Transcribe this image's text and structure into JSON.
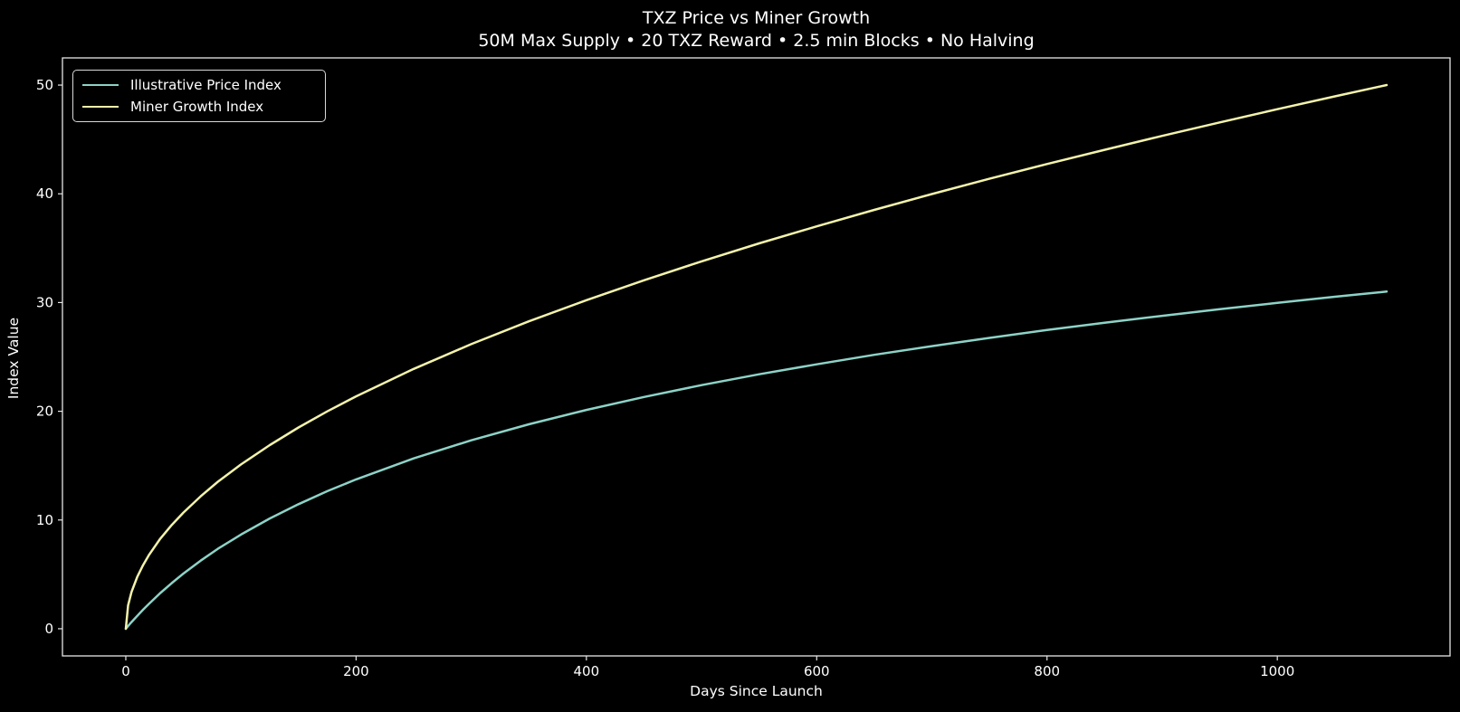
{
  "figure": {
    "background": "#000000",
    "text_color": "#ffffff",
    "spine_color": "#e6e6e6"
  },
  "title": {
    "line1": "TXZ Price vs Miner Growth",
    "line2": "50M Max Supply • 20 TXZ Reward • 2.5 min Blocks • No Halving"
  },
  "legend": {
    "position": "upper-left",
    "entries": [
      {
        "label": "Illustrative Price Index",
        "color": "#8dd3c7"
      },
      {
        "label": "Miner Growth Index",
        "color": "#f3f3ab"
      }
    ]
  },
  "chart_data": {
    "type": "line",
    "title": "TXZ Price vs Miner Growth",
    "subtitle": "50M Max Supply • 20 TXZ Reward • 2.5 min Blocks • No Halving",
    "xlabel": "Days Since Launch",
    "ylabel": "Index Value",
    "xticks": [
      0,
      200,
      400,
      600,
      800,
      1000
    ],
    "yticks": [
      0,
      10,
      20,
      30,
      40,
      50
    ],
    "xlim": [
      -55,
      1150
    ],
    "ylim": [
      -2.5,
      52.5
    ],
    "grid": false,
    "legend_position": "upper left",
    "x": [
      0,
      2,
      5,
      10,
      15,
      20,
      30,
      40,
      50,
      65,
      80,
      100,
      125,
      150,
      175,
      200,
      250,
      300,
      350,
      400,
      450,
      500,
      550,
      600,
      650,
      700,
      750,
      800,
      850,
      900,
      950,
      1000,
      1050,
      1095
    ],
    "series": [
      {
        "name": "Illustrative Price Index",
        "color": "#8dd3c7",
        "values": [
          0,
          0.25,
          0.61,
          1.19,
          1.75,
          2.28,
          3.28,
          4.21,
          5.07,
          6.26,
          7.35,
          8.66,
          10.14,
          11.45,
          12.65,
          13.73,
          15.66,
          17.33,
          18.8,
          20.12,
          21.31,
          22.4,
          23.4,
          24.32,
          25.19,
          25.99,
          26.75,
          27.47,
          28.14,
          28.78,
          29.39,
          29.97,
          30.53,
          31.01
        ]
      },
      {
        "name": "Miner Growth Index",
        "color": "#f3f3ab",
        "values": [
          0,
          2.14,
          3.38,
          4.78,
          5.85,
          6.76,
          8.28,
          9.56,
          10.68,
          12.18,
          13.52,
          15.11,
          16.89,
          18.51,
          19.99,
          21.37,
          23.89,
          26.17,
          28.27,
          30.22,
          32.05,
          33.79,
          35.44,
          37.01,
          38.52,
          39.98,
          41.38,
          42.74,
          44.05,
          45.33,
          46.57,
          47.78,
          48.96,
          50.0
        ]
      }
    ]
  }
}
